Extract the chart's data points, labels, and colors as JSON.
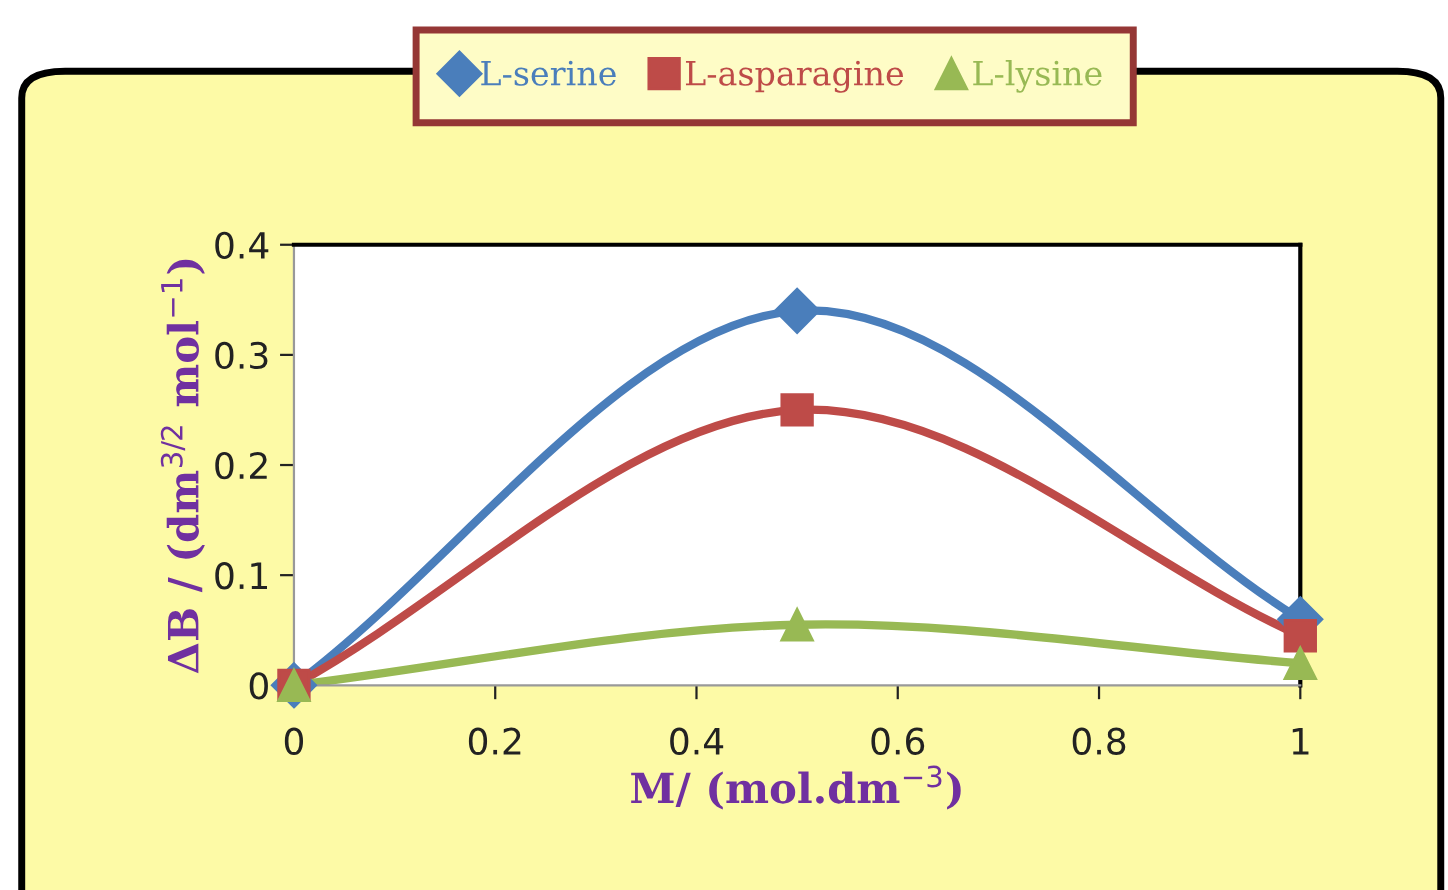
{
  "chart_data": {
    "type": "line",
    "xlabel": "M/ (mol.dm$^{−3}$)",
    "ylabel": "ΔB / (dm$^{3/2}$ mol$^{−1}$)",
    "x": [
      0,
      0.5,
      1
    ],
    "series": [
      {
        "name": "L-serine",
        "color": "#4a7ebb",
        "marker": "diamond",
        "values": [
          0,
          0.34,
          0.06
        ]
      },
      {
        "name": "L-asparagine",
        "color": "#be4b48",
        "marker": "square",
        "values": [
          0,
          0.25,
          0.045
        ]
      },
      {
        "name": "L-lysine",
        "color": "#98b954",
        "marker": "triangle",
        "values": [
          0,
          0.055,
          0.02
        ]
      }
    ],
    "xlim": [
      0,
      1
    ],
    "xticks": [
      0,
      0.2,
      0.4,
      0.6,
      0.8,
      1
    ],
    "ylim": [
      0,
      0.4
    ],
    "yticks": [
      0,
      0.1,
      0.2,
      0.3,
      0.4
    ],
    "grid": false,
    "legend": "top",
    "line_style": "solid"
  }
}
